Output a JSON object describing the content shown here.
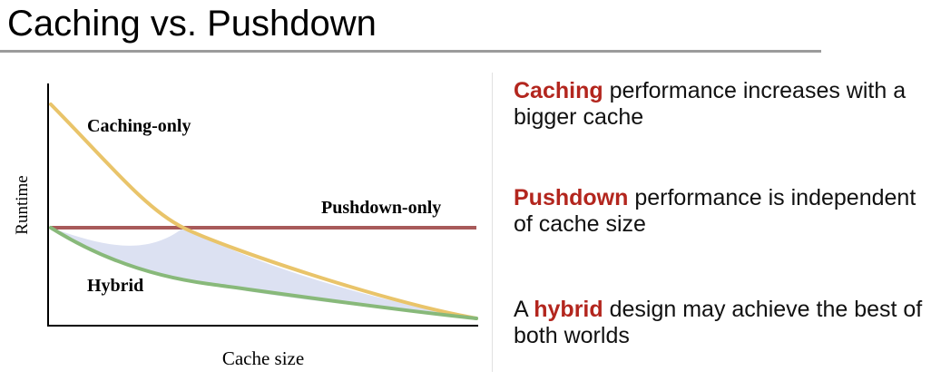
{
  "slide": {
    "title": "Caching vs. Pushdown"
  },
  "colors": {
    "accent": "#b3261e",
    "caching_curve": "#e9c46a",
    "pushdown_curve": "#a85a5a",
    "hybrid_curve": "#88b97a",
    "gap_fill": "#d6dcf0"
  },
  "diagram": {
    "y_axis_label": "Runtime",
    "x_axis_label": "Cache size",
    "curve_labels": {
      "caching": "Caching-only",
      "pushdown": "Pushdown-only",
      "hybrid": "Hybrid"
    }
  },
  "points": [
    {
      "keyword": "Caching",
      "rest": " performance increases with a bigger cache"
    },
    {
      "keyword": "Pushdown",
      "rest": " performance is independent of cache size"
    },
    {
      "prefix": "A ",
      "keyword": "hybrid",
      "rest": " design may achieve the best of both worlds"
    }
  ]
}
